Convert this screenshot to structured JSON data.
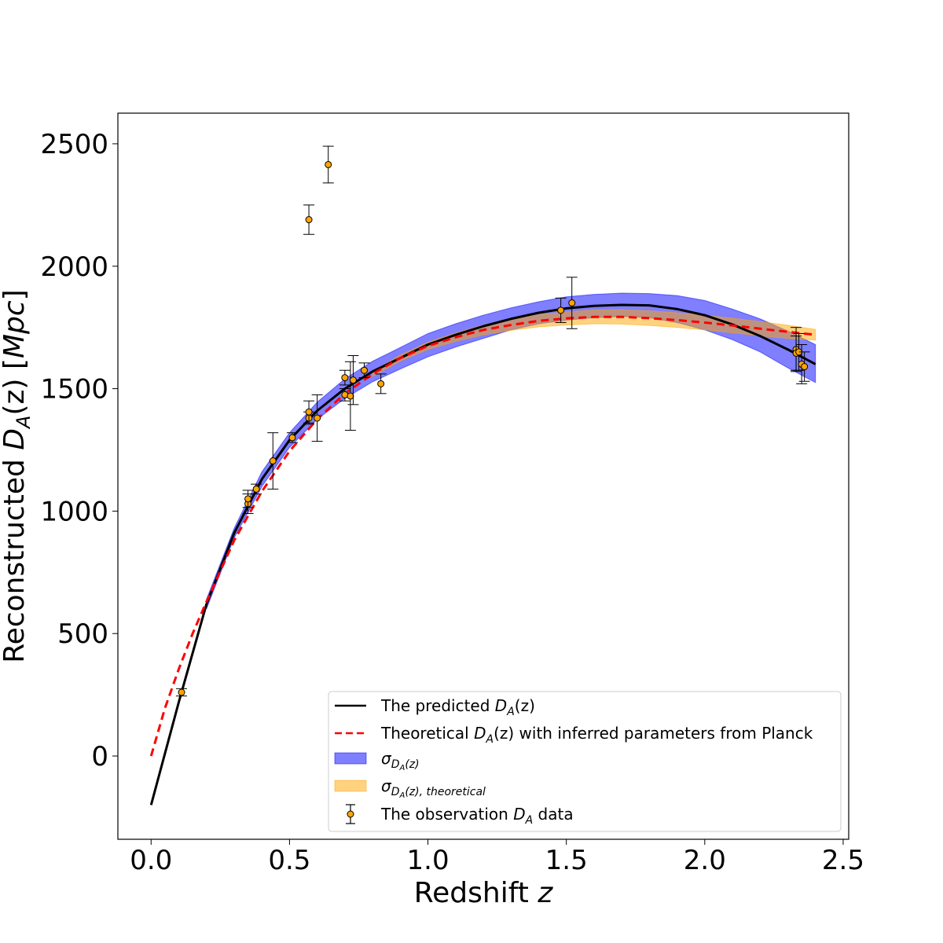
{
  "chart_data": {
    "type": "line",
    "xlabel": {
      "main": "Redshift ",
      "var": "z"
    },
    "ylabel": {
      "main": "Reconstructed ",
      "var": "D",
      "sub": "A",
      "paren": "(z)",
      "unit_open": " [",
      "unit_var": "Mpc",
      "unit_close": "]"
    },
    "xlim": [
      -0.12,
      2.52
    ],
    "ylim": [
      -340,
      2625
    ],
    "xticks": [
      0.0,
      0.5,
      1.0,
      1.5,
      2.0,
      2.5
    ],
    "xtick_labels": [
      "0.0",
      "0.5",
      "1.0",
      "1.5",
      "2.0",
      "2.5"
    ],
    "yticks": [
      0,
      500,
      1000,
      1500,
      2000,
      2500
    ],
    "ytick_labels": [
      "0",
      "500",
      "1000",
      "1500",
      "2000",
      "2500"
    ],
    "grid": false,
    "legend_position": "lower-right",
    "predicted": {
      "color": "#000000",
      "points": [
        [
          0.0,
          -200
        ],
        [
          0.1,
          220
        ],
        [
          0.2,
          620
        ],
        [
          0.3,
          910
        ],
        [
          0.4,
          1130
        ],
        [
          0.5,
          1290
        ],
        [
          0.6,
          1410
        ],
        [
          0.7,
          1500
        ],
        [
          0.8,
          1570
        ],
        [
          0.9,
          1625
        ],
        [
          1.0,
          1680
        ],
        [
          1.1,
          1720
        ],
        [
          1.2,
          1755
        ],
        [
          1.3,
          1785
        ],
        [
          1.4,
          1810
        ],
        [
          1.5,
          1828
        ],
        [
          1.6,
          1838
        ],
        [
          1.7,
          1842
        ],
        [
          1.8,
          1840
        ],
        [
          1.9,
          1825
        ],
        [
          2.0,
          1800
        ],
        [
          2.1,
          1762
        ],
        [
          2.2,
          1715
        ],
        [
          2.3,
          1660
        ],
        [
          2.4,
          1600
        ]
      ]
    },
    "predicted_band": {
      "color": "#0000ff",
      "opacity": 0.5,
      "points": [
        [
          0.2,
          600,
          640
        ],
        [
          0.3,
          890,
          930
        ],
        [
          0.4,
          1100,
          1160
        ],
        [
          0.5,
          1260,
          1320
        ],
        [
          0.6,
          1375,
          1445
        ],
        [
          0.7,
          1460,
          1540
        ],
        [
          0.8,
          1528,
          1612
        ],
        [
          0.9,
          1580,
          1668
        ],
        [
          1.0,
          1630,
          1725
        ],
        [
          1.1,
          1670,
          1765
        ],
        [
          1.2,
          1705,
          1800
        ],
        [
          1.3,
          1740,
          1830
        ],
        [
          1.4,
          1765,
          1855
        ],
        [
          1.5,
          1780,
          1875
        ],
        [
          1.6,
          1790,
          1885
        ],
        [
          1.7,
          1795,
          1890
        ],
        [
          1.8,
          1790,
          1888
        ],
        [
          1.9,
          1770,
          1880
        ],
        [
          2.0,
          1740,
          1860
        ],
        [
          2.1,
          1700,
          1825
        ],
        [
          2.2,
          1650,
          1785
        ],
        [
          2.3,
          1585,
          1735
        ],
        [
          2.4,
          1525,
          1680
        ]
      ]
    },
    "theoretical": {
      "color": "#ff0000",
      "points": [
        [
          0.0,
          0
        ],
        [
          0.05,
          195
        ],
        [
          0.1,
          355
        ],
        [
          0.15,
          500
        ],
        [
          0.2,
          630
        ],
        [
          0.3,
          880
        ],
        [
          0.4,
          1080
        ],
        [
          0.5,
          1245
        ],
        [
          0.6,
          1375
        ],
        [
          0.7,
          1480
        ],
        [
          0.8,
          1560
        ],
        [
          0.9,
          1625
        ],
        [
          1.0,
          1675
        ],
        [
          1.1,
          1710
        ],
        [
          1.2,
          1740
        ],
        [
          1.3,
          1760
        ],
        [
          1.4,
          1777
        ],
        [
          1.5,
          1787
        ],
        [
          1.6,
          1793
        ],
        [
          1.7,
          1793
        ],
        [
          1.8,
          1788
        ],
        [
          1.9,
          1780
        ],
        [
          2.0,
          1770
        ],
        [
          2.1,
          1758
        ],
        [
          2.2,
          1745
        ],
        [
          2.3,
          1732
        ],
        [
          2.4,
          1720
        ]
      ]
    },
    "theoretical_band": {
      "color": "#ffa500",
      "opacity": 0.5,
      "points": [
        [
          0.8,
          1550,
          1570
        ],
        [
          0.9,
          1613,
          1637
        ],
        [
          1.0,
          1660,
          1690
        ],
        [
          1.1,
          1693,
          1727
        ],
        [
          1.2,
          1720,
          1760
        ],
        [
          1.3,
          1738,
          1782
        ],
        [
          1.4,
          1752,
          1802
        ],
        [
          1.5,
          1760,
          1814
        ],
        [
          1.6,
          1765,
          1821
        ],
        [
          1.7,
          1764,
          1822
        ],
        [
          1.8,
          1758,
          1818
        ],
        [
          1.9,
          1750,
          1810
        ],
        [
          2.0,
          1740,
          1800
        ],
        [
          2.1,
          1728,
          1788
        ],
        [
          2.2,
          1716,
          1774
        ],
        [
          2.3,
          1705,
          1759
        ],
        [
          2.4,
          1698,
          1742
        ]
      ]
    },
    "observations": {
      "marker_color": "#ffa500",
      "points": [
        {
          "z": 0.11,
          "da": 260,
          "err": 15
        },
        {
          "z": 0.35,
          "da": 1030,
          "err": 40
        },
        {
          "z": 0.35,
          "da": 1050,
          "err": 35
        },
        {
          "z": 0.38,
          "da": 1090,
          "err": 20
        },
        {
          "z": 0.44,
          "da": 1205,
          "err": 115
        },
        {
          "z": 0.51,
          "da": 1300,
          "err": 20
        },
        {
          "z": 0.57,
          "da": 1380,
          "err": 25
        },
        {
          "z": 0.57,
          "da": 1405,
          "err": 45
        },
        {
          "z": 0.57,
          "da": 2190,
          "err": 60
        },
        {
          "z": 0.6,
          "da": 1380,
          "err": 95
        },
        {
          "z": 0.64,
          "da": 2415,
          "err": 75
        },
        {
          "z": 0.7,
          "da": 1475,
          "err": 25
        },
        {
          "z": 0.7,
          "da": 1545,
          "err": 30
        },
        {
          "z": 0.72,
          "da": 1470,
          "err": 140
        },
        {
          "z": 0.73,
          "da": 1535,
          "err": 100
        },
        {
          "z": 0.77,
          "da": 1575,
          "err": 30
        },
        {
          "z": 0.83,
          "da": 1520,
          "err": 40
        },
        {
          "z": 1.48,
          "da": 1820,
          "err": 50
        },
        {
          "z": 1.52,
          "da": 1850,
          "err": 105
        },
        {
          "z": 2.33,
          "da": 1660,
          "err": 90
        },
        {
          "z": 2.33,
          "da": 1645,
          "err": 70
        },
        {
          "z": 2.34,
          "da": 1650,
          "err": 75
        },
        {
          "z": 2.35,
          "da": 1600,
          "err": 80
        },
        {
          "z": 2.36,
          "da": 1590,
          "err": 60
        }
      ]
    },
    "legend": [
      {
        "kind": "line",
        "label_pre": "The predicted ",
        "label_var": "D",
        "label_sub": "A",
        "label_post": "(z)",
        "label_tail": ""
      },
      {
        "kind": "dashed",
        "label_pre": "Theoretical ",
        "label_var": "D",
        "label_sub": "A",
        "label_post": "(z)",
        "label_tail": " with inferred parameters from Planck"
      },
      {
        "kind": "patch-blue",
        "label_var": "σ",
        "label_sub": "D",
        "label_subsub": "A",
        "label_subpost": "(z)"
      },
      {
        "kind": "patch-orange",
        "label_var": "σ",
        "label_sub": "D",
        "label_subsub": "A",
        "label_subpost": "(z), theoretical"
      },
      {
        "kind": "errorbar",
        "label_pre": "The observation ",
        "label_var": "D",
        "label_sub": "A",
        "label_post": " data",
        "label_tail": ""
      }
    ]
  }
}
